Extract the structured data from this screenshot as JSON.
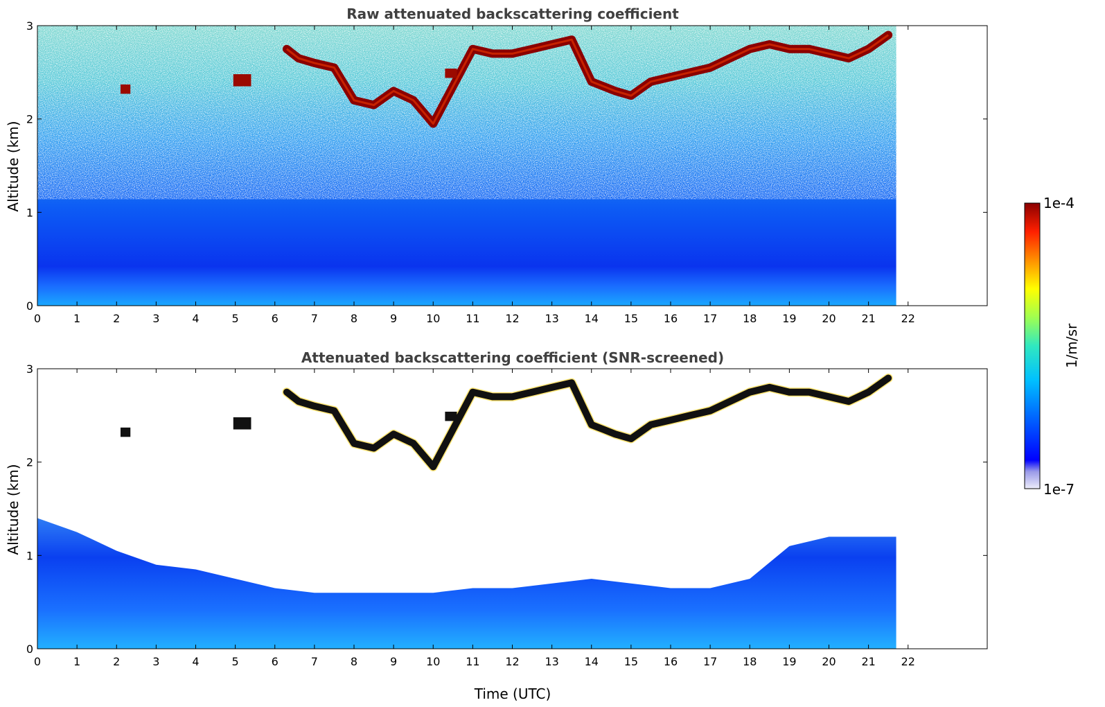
{
  "chart_data": [
    {
      "type": "heatmap",
      "title": "Raw attenuated backscattering coefficient",
      "xlabel": "",
      "ylabel": "Altitude (km)",
      "xlim": [
        0,
        24
      ],
      "ylim": [
        0,
        3
      ],
      "x_ticks": [
        0,
        1,
        2,
        3,
        4,
        5,
        6,
        7,
        8,
        9,
        10,
        11,
        12,
        13,
        14,
        15,
        16,
        17,
        18,
        19,
        20,
        21,
        22
      ],
      "y_ticks": [
        0,
        1,
        2,
        3
      ],
      "data_end_time": 21.7,
      "cloud_base_profile": {
        "time": [
          6.3,
          6.6,
          7.0,
          7.5,
          8.0,
          8.5,
          9.0,
          9.5,
          10.0,
          11.0,
          11.5,
          12.0,
          12.5,
          13.0,
          13.5,
          14.0,
          14.3,
          14.6,
          15.0,
          15.5,
          16.0,
          16.5,
          17.0,
          17.5,
          18.0,
          18.5,
          19.0,
          19.5,
          20.0,
          20.5,
          21.0,
          21.5
        ],
        "altitude": [
          2.75,
          2.65,
          2.6,
          2.55,
          2.2,
          2.15,
          2.3,
          2.2,
          1.95,
          2.75,
          2.7,
          2.7,
          2.75,
          2.8,
          2.85,
          2.4,
          2.35,
          2.3,
          2.25,
          2.4,
          2.45,
          2.5,
          2.55,
          2.65,
          2.75,
          2.8,
          2.75,
          2.75,
          2.7,
          2.65,
          2.75,
          2.9
        ]
      },
      "cloud_patches": [
        {
          "time": [
            2.1,
            2.35
          ],
          "altitude": [
            2.27,
            2.37
          ]
        },
        {
          "time": [
            4.95,
            5.4
          ],
          "altitude": [
            2.35,
            2.48
          ]
        },
        {
          "time": [
            10.3,
            10.6
          ],
          "altitude": [
            2.44,
            2.54
          ]
        }
      ]
    },
    {
      "type": "heatmap",
      "title": "Attenuated backscattering coefficient (SNR-screened)",
      "xlabel": "Time (UTC)",
      "ylabel": "Altitude (km)",
      "xlim": [
        0,
        24
      ],
      "ylim": [
        0,
        3
      ],
      "x_ticks": [
        0,
        1,
        2,
        3,
        4,
        5,
        6,
        7,
        8,
        9,
        10,
        11,
        12,
        13,
        14,
        15,
        16,
        17,
        18,
        19,
        20,
        21,
        22
      ],
      "y_ticks": [
        0,
        1,
        2,
        3
      ],
      "boundary_layer_top": {
        "time": [
          0,
          1,
          2,
          3,
          4,
          5,
          6,
          7,
          8,
          9,
          10,
          11,
          12,
          13,
          14,
          15,
          16,
          17,
          18,
          19,
          20,
          21,
          21.7
        ],
        "altitude": [
          1.4,
          1.25,
          1.05,
          0.9,
          0.85,
          0.75,
          0.65,
          0.6,
          0.6,
          0.6,
          0.6,
          0.65,
          0.65,
          0.7,
          0.75,
          0.7,
          0.65,
          0.65,
          0.75,
          1.1,
          1.2,
          1.2,
          1.2
        ]
      }
    }
  ],
  "colorbar": {
    "max_label": "1e-4",
    "min_label": "1e-7",
    "units_label": "1/m/sr",
    "vmin": 1e-07,
    "vmax": 0.0001,
    "scale": "log",
    "colormap": [
      "#e0e0f8",
      "#9a9ae8",
      "#0000ff",
      "#0066ff",
      "#00c0ff",
      "#20e0c0",
      "#80ff60",
      "#ffff00",
      "#ff9000",
      "#ff2000",
      "#8b0000"
    ]
  }
}
